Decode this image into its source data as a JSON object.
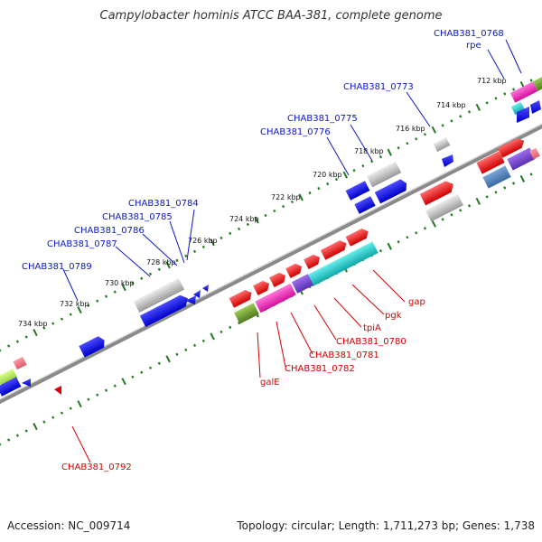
{
  "title": "Campylobacter hominis ATCC BAA-381, complete genome",
  "footer": {
    "accession": "Accession: NC_009714",
    "summary": "Topology: circular; Length: 1,711,273 bp; Genes: 1,738"
  },
  "colors": {
    "forward_cds": "#ff1a1a",
    "reverse_cds": "#1a1aff",
    "gray_feature": "#c8c8c8",
    "cyan_feature": "#22d0d0",
    "magenta_feature": "#ff22bb",
    "olive_feature": "#6b9a2a",
    "backbone": "#777777",
    "tick": "#1f7a1f",
    "label_forward": "#d40000",
    "label_reverse": "#0b18c8"
  },
  "kbp_ticks": [
    "712 kbp",
    "714 kbp",
    "716 kbp",
    "718 kbp",
    "720 kbp",
    "722 kbp",
    "724 kbp",
    "726 kbp",
    "728 kbp",
    "730 kbp",
    "732 kbp",
    "734 kbp"
  ],
  "gene_labels_reverse": [
    "CHAB381_0768",
    "rpe",
    "CHAB381_0773",
    "CHAB381_0775",
    "CHAB381_0776",
    "CHAB381_0784",
    "CHAB381_0785",
    "CHAB381_0786",
    "CHAB381_0787",
    "CHAB381_0789"
  ],
  "gene_labels_forward": [
    "gap",
    "pgk",
    "tpiA",
    "CHAB381_0780",
    "CHAB381_0781",
    "CHAB381_0782",
    "galE",
    "CHAB381_0792"
  ]
}
